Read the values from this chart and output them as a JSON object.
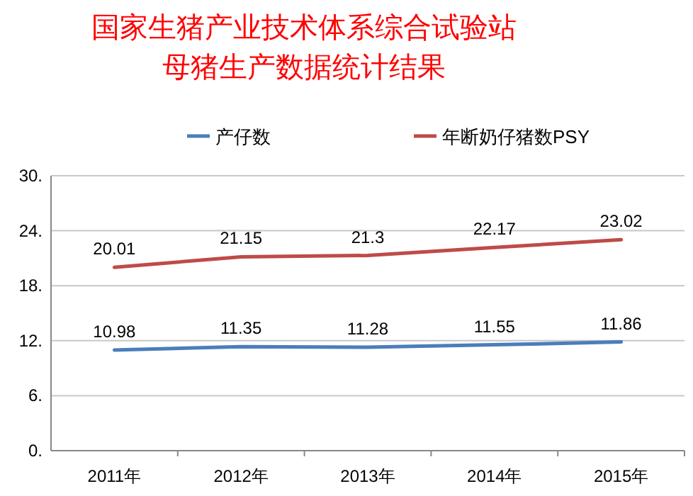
{
  "chart_data": {
    "type": "line",
    "title": "国家生猪产业技术体系综合试验站",
    "subtitle": "母猪生产数据统计结果",
    "categories": [
      "2011年",
      "2012年",
      "2013年",
      "2014年",
      "2015年"
    ],
    "series": [
      {
        "name": "产仔数",
        "color": "#4a7ebb",
        "values": [
          10.98,
          11.35,
          11.28,
          11.55,
          11.86
        ]
      },
      {
        "name": "年断奶仔猪数PSY",
        "color": "#be4b48",
        "values": [
          20.01,
          21.15,
          21.3,
          22.17,
          23.02
        ]
      }
    ],
    "ylim": [
      0,
      30
    ],
    "yticks": [
      {
        "value": 0,
        "label": "0."
      },
      {
        "value": 6,
        "label": "6."
      },
      {
        "value": 12,
        "label": "12."
      },
      {
        "value": 18,
        "label": "18."
      },
      {
        "value": 24,
        "label": "24."
      },
      {
        "value": 30,
        "label": "30."
      }
    ],
    "grid": "y",
    "legend": "top",
    "data_labels": true,
    "marker": "none",
    "line_style": "solid"
  }
}
